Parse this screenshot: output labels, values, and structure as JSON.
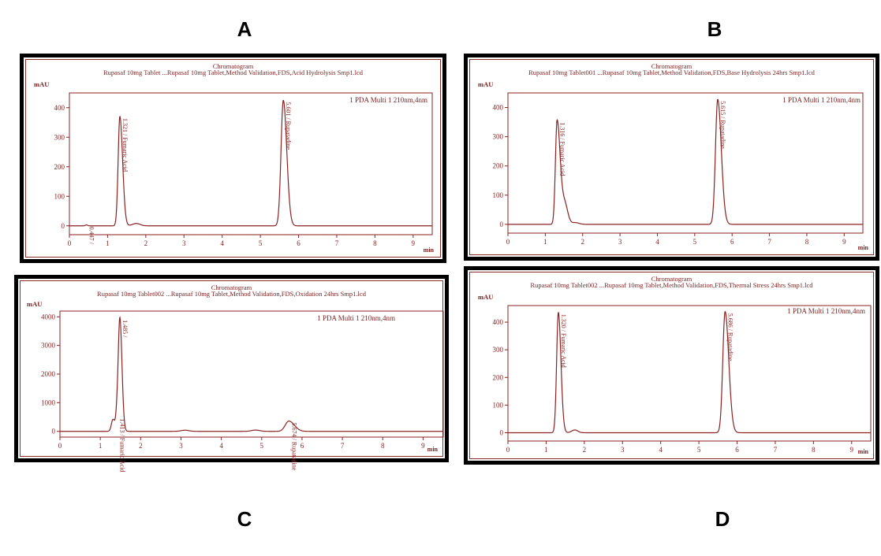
{
  "figure_labels": [
    "A",
    "B",
    "C",
    "D"
  ],
  "chart_data": [
    {
      "panel": "A",
      "type": "line",
      "title": "Chromatogram",
      "subtitle": "Rupasaf 10mg Tablet ...Rupasaf 10mg Tablet,Method Validation,FDS,Acid Hydrolysis Smp1.lcd",
      "ylabel": "mAU",
      "xlabel": "min",
      "detector": "1 PDA Multi 1 210nm,4nm",
      "xlim": [
        0,
        9.5
      ],
      "ylim": [
        -30,
        450
      ],
      "xticks": [
        0,
        1,
        2,
        3,
        4,
        5,
        6,
        7,
        8,
        9
      ],
      "yticks": [
        0,
        100,
        200,
        300,
        400
      ],
      "baseline_bumps": [
        {
          "rt": 1.75,
          "height": 8,
          "width": 0.1
        }
      ],
      "peaks": [
        {
          "rt": 0.447,
          "height": 3,
          "width": 0.03,
          "label": "0.447 /"
        },
        {
          "rt": 1.321,
          "height": 370,
          "width": 0.045,
          "tail": 1.6,
          "label": "1.321 / Fumaric Acid"
        },
        {
          "rt": 5.601,
          "height": 425,
          "width": 0.06,
          "tail": 1.5,
          "label": "5.601 / Rupatadine"
        }
      ]
    },
    {
      "panel": "B",
      "type": "line",
      "title": "Chromatogram",
      "subtitle": "Rupasaf 10mg Tablet001 ...Rupasaf 10mg Tablet,Method Validation,FDS,Base Hydrolysis 24hrs Smp1.lcd",
      "ylabel": "mAU",
      "xlabel": "min",
      "detector": "1 PDA Multi 1 210nm,4nm",
      "xlim": [
        0,
        9.5
      ],
      "ylim": [
        -30,
        450
      ],
      "xticks": [
        0,
        1,
        2,
        3,
        4,
        5,
        6,
        7,
        8,
        9
      ],
      "yticks": [
        0,
        100,
        200,
        300,
        400
      ],
      "baseline_bumps": [
        {
          "rt": 1.52,
          "height": 70,
          "width": 0.08
        },
        {
          "rt": 1.8,
          "height": 6,
          "width": 0.1
        }
      ],
      "peaks": [
        {
          "rt": 1.316,
          "height": 355,
          "width": 0.045,
          "tail": 1.8,
          "label": "1.316 / Fumaric Acid"
        },
        {
          "rt": 5.615,
          "height": 428,
          "width": 0.06,
          "tail": 1.6,
          "label": "5.615 / Rupatadine"
        }
      ]
    },
    {
      "panel": "C",
      "type": "line",
      "title": "Chromatogram",
      "subtitle": "Rupasaf 10mg Tablet002 ...Rupasaf 10mg Tablet,Method Validation,FDS,Oxidation 24hrs Smp1.lcd",
      "ylabel": "mAU",
      "xlabel": "min",
      "detector": "1 PDA Multi 1 210nm,4nm",
      "xlim": [
        0,
        9.5
      ],
      "ylim": [
        -200,
        4200
      ],
      "xticks": [
        0,
        1,
        2,
        3,
        4,
        5,
        6,
        7,
        8,
        9
      ],
      "yticks": [
        0,
        1000,
        2000,
        3000,
        4000
      ],
      "baseline_bumps": [
        {
          "rt": 3.1,
          "height": 40,
          "width": 0.1
        },
        {
          "rt": 4.85,
          "height": 45,
          "width": 0.1
        }
      ],
      "peaks": [
        {
          "rt": 1.315,
          "height": 420,
          "width": 0.04,
          "tail": 1.2,
          "label": ""
        },
        {
          "rt": 1.413,
          "height": 500,
          "width": 0.03,
          "tail": 1.0,
          "label": "1.413 / Fumaric Acid"
        },
        {
          "rt": 1.485,
          "height": 3950,
          "width": 0.04,
          "tail": 1.3,
          "label": "1.485 /"
        },
        {
          "rt": 5.674,
          "height": 360,
          "width": 0.09,
          "tail": 1.5,
          "label": "5.674 / Rupatadine"
        }
      ]
    },
    {
      "panel": "D",
      "type": "line",
      "title": "Chromatogram",
      "subtitle": "Rupasaf 10mg Tablet002 ...Rupasaf 10mg Tablet,Method Validation,FDS,Thermal Stress 24hrs Smp1.lcd",
      "ylabel": "mAU",
      "xlabel": "min",
      "detector": "1 PDA Multi 1 210nm,4nm",
      "xlim": [
        0,
        9.5
      ],
      "ylim": [
        -30,
        460
      ],
      "xticks": [
        0,
        1,
        2,
        3,
        4,
        5,
        6,
        7,
        8,
        9
      ],
      "yticks": [
        0,
        100,
        200,
        300,
        400
      ],
      "baseline_bumps": [
        {
          "rt": 1.75,
          "height": 10,
          "width": 0.08
        }
      ],
      "peaks": [
        {
          "rt": 1.32,
          "height": 435,
          "width": 0.045,
          "tail": 1.5,
          "label": "1.320 / Fumaric Acid"
        },
        {
          "rt": 5.686,
          "height": 438,
          "width": 0.06,
          "tail": 1.6,
          "label": "5.686 / Rupatadine"
        }
      ]
    }
  ]
}
